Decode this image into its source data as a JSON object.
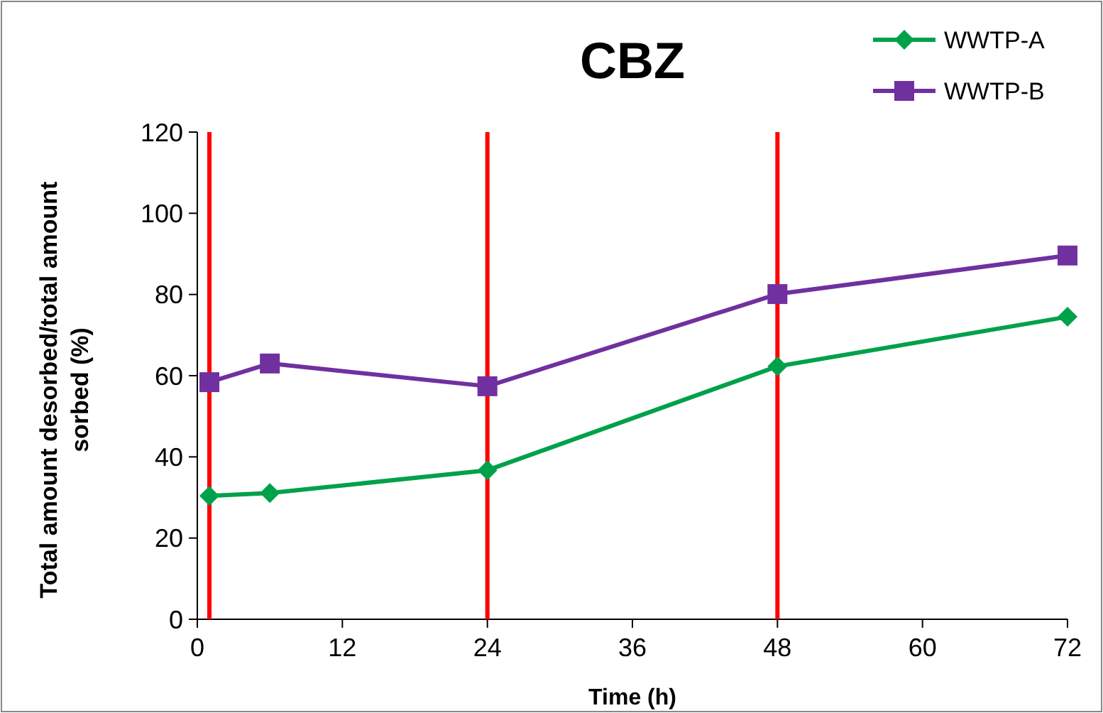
{
  "chart_data": {
    "type": "line",
    "title": "CBZ",
    "xlabel": "Time (h)",
    "ylabel": "Total amount desorbed/total amount sorbed (%)",
    "xlim": [
      0,
      72
    ],
    "xticks": [
      0,
      12,
      24,
      36,
      48,
      60,
      72
    ],
    "ylim": [
      0,
      120
    ],
    "yticks": [
      0,
      20,
      40,
      60,
      80,
      100,
      120
    ],
    "legend": "top right",
    "grid": false,
    "series": [
      {
        "name": "WWTP-A",
        "color": "#00a14b",
        "marker": "diamond",
        "x": [
          1,
          6,
          24,
          48,
          72
        ],
        "values": [
          30.4,
          31.1,
          36.7,
          62.3,
          74.5
        ]
      },
      {
        "name": "WWTP-B",
        "color": "#7030a0",
        "marker": "square",
        "x": [
          1,
          6,
          24,
          48,
          72
        ],
        "values": [
          58.4,
          63,
          57.4,
          80.1,
          89.6
        ]
      }
    ],
    "ref_lines": [
      {
        "axis": "x",
        "value": 1,
        "color": "#ff0000"
      },
      {
        "axis": "x",
        "value": 24,
        "color": "#ff0000"
      },
      {
        "axis": "x",
        "value": 48,
        "color": "#ff0000"
      }
    ]
  }
}
